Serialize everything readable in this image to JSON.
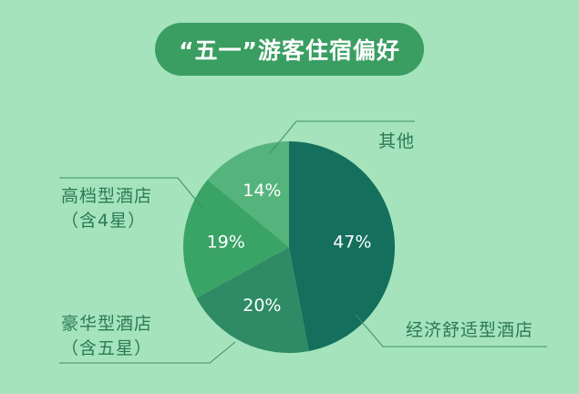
{
  "chart_data": {
    "type": "pie",
    "title": "“五一”游客住宿偏好",
    "slices": [
      {
        "label": "经济舒适型酒店",
        "value": 47,
        "value_label": "47%",
        "color": "#146f5c"
      },
      {
        "label": "豪华型酒店（含五星）",
        "label_lines": [
          "豪华型酒店",
          "（含五星）"
        ],
        "value": 20,
        "value_label": "20%",
        "color": "#2e8b66"
      },
      {
        "label": "高档型酒店（含4星）",
        "label_lines": [
          "高档型酒店",
          "（含4星）"
        ],
        "value": 19,
        "value_label": "19%",
        "color": "#3aa366"
      },
      {
        "label": "其他",
        "value": 14,
        "value_label": "14%",
        "color": "#55b47c"
      }
    ],
    "start_angle": "top",
    "direction": "clockwise"
  }
}
